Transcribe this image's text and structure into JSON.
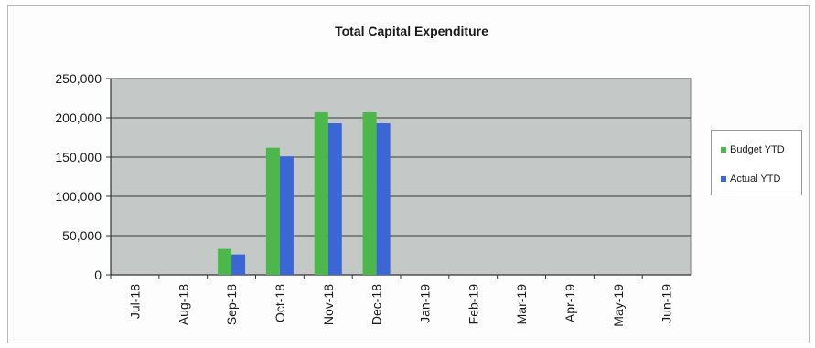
{
  "chart_data": {
    "type": "bar",
    "title": "Total Capital Expenditure",
    "xlabel": "",
    "ylabel": "",
    "categories": [
      "Jul-18",
      "Aug-18",
      "Sep-18",
      "Oct-18",
      "Nov-18",
      "Dec-18",
      "Jan-19",
      "Feb-19",
      "Mar-19",
      "Apr-19",
      "May-19",
      "Jun-19"
    ],
    "series": [
      {
        "name": "Budget YTD",
        "color": "#4cb84c",
        "values": [
          0,
          0,
          33000,
          162000,
          207000,
          207000,
          0,
          0,
          0,
          0,
          0,
          0
        ]
      },
      {
        "name": "Actual YTD",
        "color": "#3a66d6",
        "values": [
          0,
          0,
          26000,
          151000,
          193000,
          193000,
          0,
          0,
          0,
          0,
          0,
          0
        ]
      }
    ],
    "ylim": [
      0,
      250000
    ],
    "yticks": [
      0,
      50000,
      100000,
      150000,
      200000,
      250000
    ],
    "ytick_labels": [
      "0",
      "50,000",
      "100,000",
      "150,000",
      "200,000",
      "250,000"
    ],
    "grid": true,
    "legend_position": "right",
    "plot_background": "#c4c8c6"
  }
}
